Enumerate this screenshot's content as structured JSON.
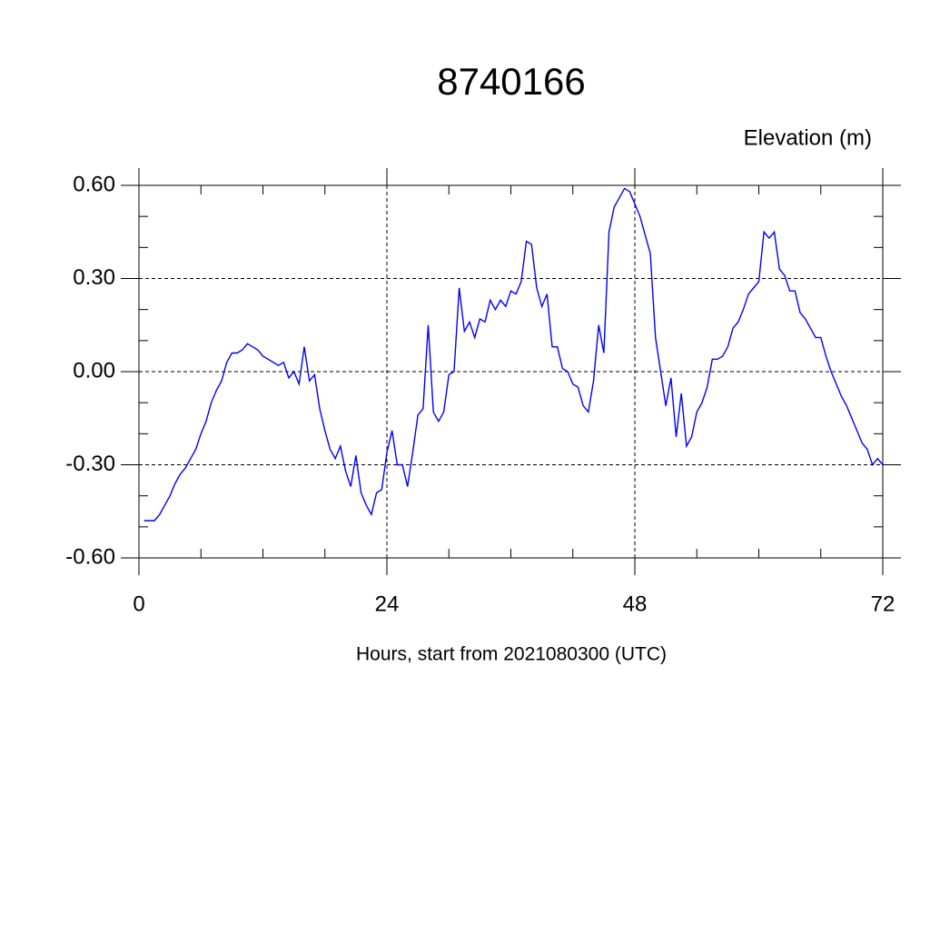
{
  "chart_data": {
    "type": "line",
    "title": "8740166",
    "subtitle": "Elevation (m)",
    "x_label": "Hours, start from 2021080300 (UTC)",
    "xlim": [
      0,
      72
    ],
    "xticks": [
      0,
      24,
      48,
      72
    ],
    "xminorticks": [
      6,
      12,
      18,
      30,
      36,
      42,
      54,
      60,
      66
    ],
    "ylim": [
      -0.6,
      0.6
    ],
    "yticks": [
      {
        "value": -0.6,
        "label": "-0.60"
      },
      {
        "value": -0.3,
        "label": "-0.30"
      },
      {
        "value": 0,
        "label": "0.00"
      },
      {
        "value": 0.3,
        "label": "0.30"
      },
      {
        "value": 0.6,
        "label": "0.60"
      }
    ],
    "yminorticks": [
      -0.5,
      -0.4,
      -0.2,
      -0.1,
      0.1,
      0.2,
      0.4,
      0.5
    ],
    "grid": true,
    "x": [
      0.5,
      1,
      1.5,
      2,
      2.5,
      3,
      3.5,
      4,
      4.5,
      5,
      5.5,
      6,
      6.5,
      7,
      7.5,
      8,
      8.5,
      9,
      9.5,
      10,
      10.5,
      11,
      11.5,
      12,
      12.5,
      13,
      13.5,
      14,
      14.5,
      15,
      15.5,
      16,
      16.5,
      17,
      17.5,
      18,
      18.5,
      19,
      19.5,
      20,
      20.5,
      21,
      21.5,
      22,
      22.5,
      23,
      23.5,
      24,
      24.5,
      25,
      25.5,
      26,
      26.5,
      27,
      27.5,
      28,
      28.5,
      29,
      29.5,
      30,
      30.5,
      31,
      31.5,
      32,
      32.5,
      33,
      33.5,
      34,
      34.5,
      35,
      35.5,
      36,
      36.5,
      37,
      37.5,
      38,
      38.5,
      39,
      39.5,
      40,
      40.5,
      41,
      41.5,
      42,
      42.5,
      43,
      43.5,
      44,
      44.5,
      45,
      45.5,
      46,
      46.5,
      47,
      47.5,
      48,
      48.5,
      49,
      49.5,
      50,
      50.5,
      51,
      51.5,
      52,
      52.5,
      53,
      53.5,
      54,
      54.5,
      55,
      55.5,
      56,
      56.5,
      57,
      57.5,
      58,
      58.5,
      59,
      59.5,
      60,
      60.5,
      61,
      61.5,
      62,
      62.5,
      63,
      63.5,
      64,
      64.5,
      65,
      65.5,
      66,
      66.5,
      67,
      67.5,
      68,
      68.5,
      69,
      69.5,
      70,
      70.5,
      71,
      71.5,
      72
    ],
    "series": [
      {
        "name": "Elevation",
        "color": "#0000ff",
        "values": [
          -0.48,
          -0.48,
          -0.48,
          -0.46,
          -0.43,
          -0.4,
          -0.36,
          -0.33,
          -0.31,
          -0.28,
          -0.25,
          -0.2,
          -0.16,
          -0.1,
          -0.06,
          -0.03,
          0.03,
          0.06,
          0.06,
          0.07,
          0.09,
          0.08,
          0.07,
          0.05,
          0.04,
          0.03,
          0.02,
          0.03,
          -0.02,
          0.0,
          -0.04,
          0.08,
          -0.03,
          -0.01,
          -0.12,
          -0.19,
          -0.25,
          -0.28,
          -0.24,
          -0.32,
          -0.37,
          -0.27,
          -0.39,
          -0.43,
          -0.46,
          -0.39,
          -0.38,
          -0.26,
          -0.19,
          -0.3,
          -0.3,
          -0.37,
          -0.26,
          -0.14,
          -0.12,
          0.15,
          -0.13,
          -0.16,
          -0.13,
          -0.01,
          0.0,
          0.27,
          0.13,
          0.16,
          0.11,
          0.17,
          0.16,
          0.23,
          0.2,
          0.23,
          0.21,
          0.26,
          0.25,
          0.29,
          0.42,
          0.41,
          0.27,
          0.21,
          0.25,
          0.08,
          0.08,
          0.01,
          0.0,
          -0.04,
          -0.05,
          -0.11,
          -0.13,
          -0.03,
          0.15,
          0.06,
          0.45,
          0.53,
          0.56,
          0.59,
          0.58,
          0.54,
          0.5,
          0.44,
          0.38,
          0.11,
          0.0,
          -0.11,
          -0.02,
          -0.21,
          -0.07,
          -0.24,
          -0.21,
          -0.13,
          -0.1,
          -0.05,
          0.04,
          0.04,
          0.05,
          0.08,
          0.14,
          0.16,
          0.2,
          0.25,
          0.27,
          0.29,
          0.45,
          0.43,
          0.45,
          0.33,
          0.31,
          0.26,
          0.26,
          0.19,
          0.17,
          0.14,
          0.11,
          0.11,
          0.05,
          0.0,
          -0.04,
          -0.08,
          -0.11,
          -0.15,
          -0.19,
          -0.23,
          -0.25,
          -0.3,
          -0.28,
          -0.3
        ]
      }
    ]
  }
}
